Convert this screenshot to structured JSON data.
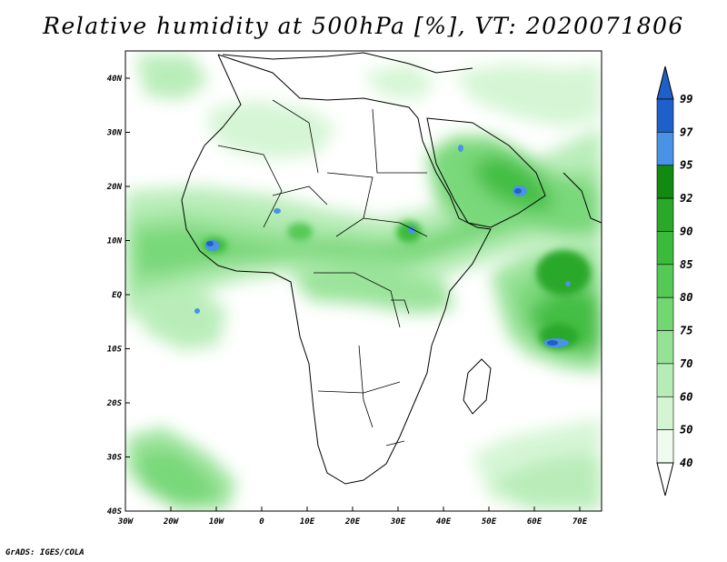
{
  "title": "Relative humidity at 500hPa [%], VT: 2020071806",
  "credit": "GrADS: IGES/COLA",
  "map": {
    "lon_range": [
      -30,
      75
    ],
    "lat_range": [
      -40,
      45
    ],
    "lon_ticks": [
      "30W",
      "20W",
      "10W",
      "0",
      "10E",
      "20E",
      "30E",
      "40E",
      "50E",
      "60E",
      "70E"
    ],
    "lat_ticks": [
      "40N",
      "30N",
      "20N",
      "10N",
      "EQ",
      "10S",
      "20S",
      "30S",
      "40S"
    ]
  },
  "colorbar": {
    "labels": [
      "99",
      "97",
      "95",
      "92",
      "90",
      "85",
      "80",
      "75",
      "70",
      "60",
      "50",
      "40"
    ],
    "colors": [
      "#1f5fc9",
      "#4a92e6",
      "#128a12",
      "#29a829",
      "#3bbb3b",
      "#55c955",
      "#72d672",
      "#95e295",
      "#b6ecb6",
      "#d3f5d3",
      "#eefbee"
    ]
  }
}
